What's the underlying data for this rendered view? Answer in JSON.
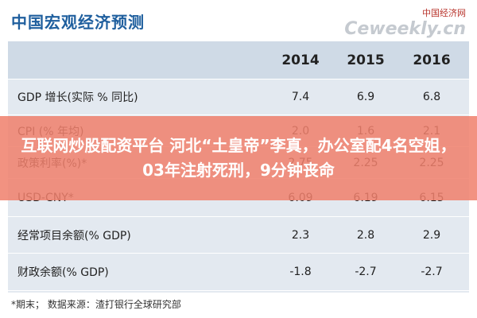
{
  "header": {
    "title": "中国宏观经济预测",
    "watermark_cn": "中国经济网",
    "watermark_en": "Ceweekly.cn"
  },
  "table": {
    "columns": [
      "",
      "2014",
      "2015",
      "2016"
    ],
    "rows": [
      [
        "GDP 增长(实际 % 同比)",
        "7.4",
        "6.9",
        "6.8"
      ],
      [
        "CPI (% 年均)",
        "2.0",
        "1.6",
        "2.1"
      ],
      [
        "政策利率(%)*",
        "2.75",
        "2.25",
        "2.25"
      ],
      [
        "USD-CNY*",
        "6.09",
        "6.19",
        "6.15"
      ],
      [
        "经常项目余额(% GDP)",
        "2.3",
        "2.8",
        "2.9"
      ],
      [
        "财政余额(% GDP)",
        "-1.8",
        "-2.7",
        "-2.7"
      ]
    ]
  },
  "footnote": "*期末；   数据来源：渣打银行全球研究部",
  "banner": "互联网炒股配资平台 河北“土皇帝”李真，办公室配4名空姐，03年注射死刑，9分钟丧命"
}
